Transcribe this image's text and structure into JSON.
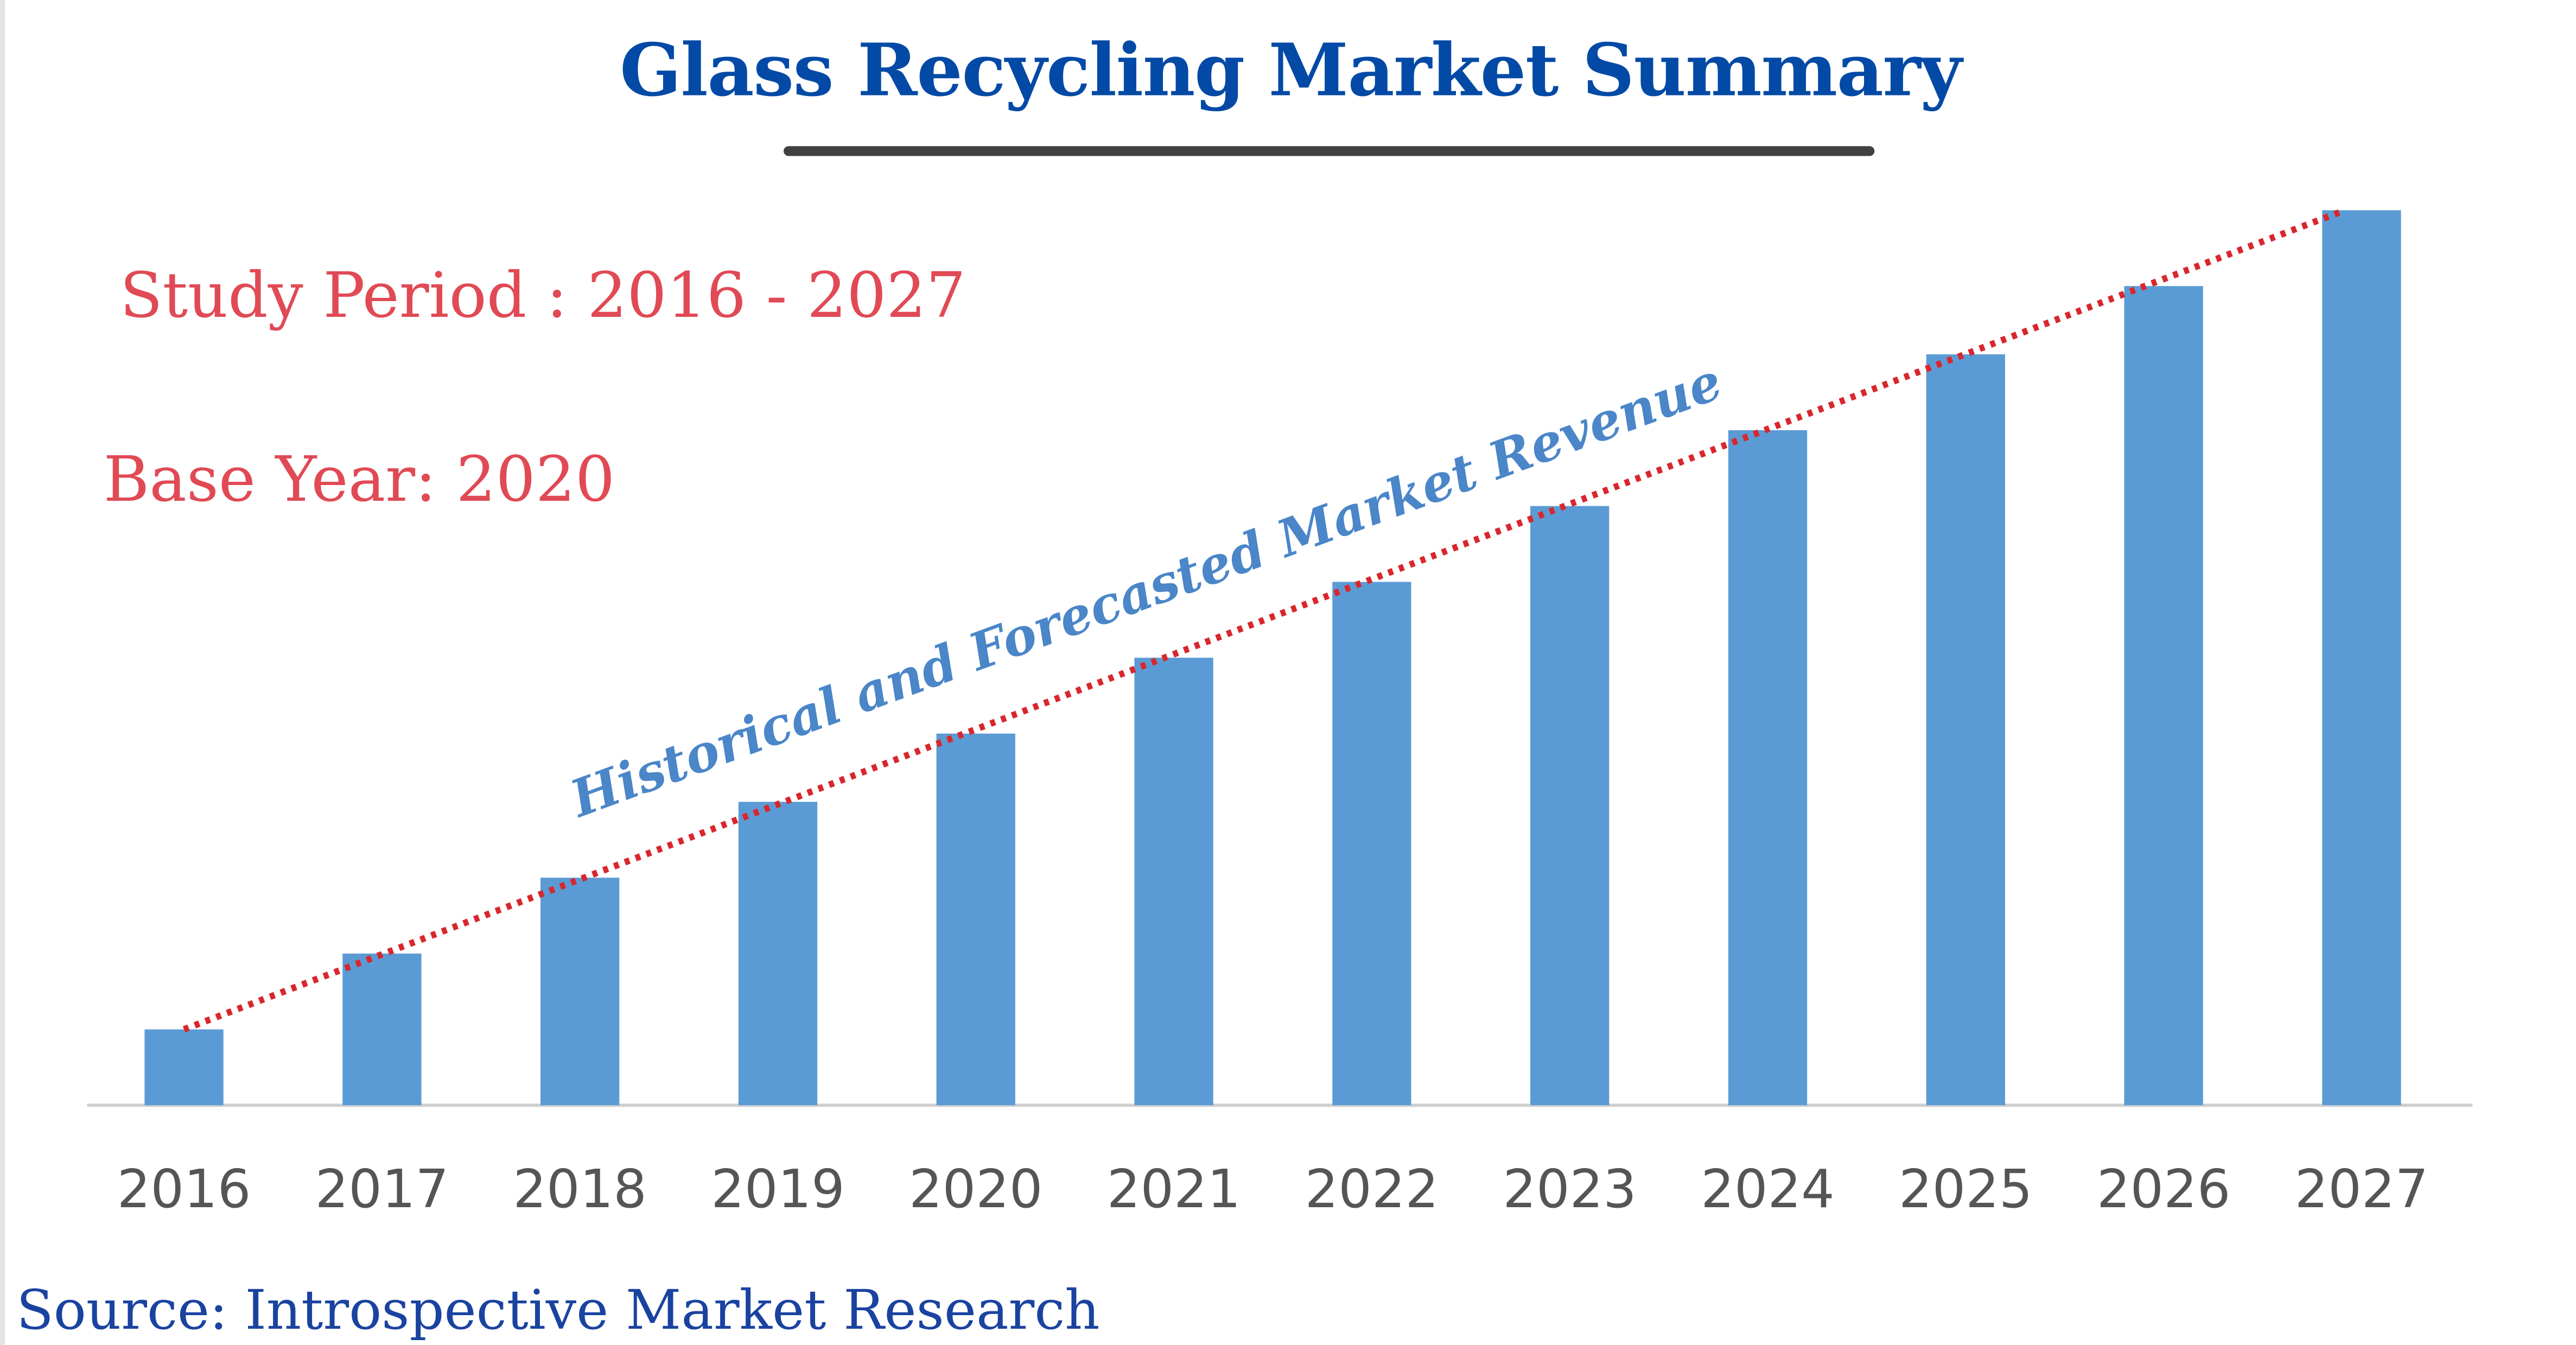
{
  "title": "Glass Recycling Market Summary",
  "study_period": "Study Period : 2016 - 2027",
  "base_year": "Base Year: 2020",
  "source": "Source: Introspective Market Research",
  "colors": {
    "title": "#034aa6",
    "info": "#e04a55",
    "bar": "#5b9bd5",
    "trend": "#d9262c",
    "annotation": "#4a86c8",
    "source": "#1a43a0"
  },
  "chart_data": {
    "type": "bar",
    "title": "Glass Recycling Market Summary",
    "annotation": "Historical and Forecasted Market Revenue",
    "categories": [
      "2016",
      "2017",
      "2018",
      "2019",
      "2020",
      "2021",
      "2022",
      "2023",
      "2024",
      "2025",
      "2026",
      "2027"
    ],
    "values": [
      1.0,
      2.0,
      3.0,
      4.0,
      4.9,
      5.9,
      6.9,
      7.9,
      8.9,
      9.9,
      10.8,
      11.8
    ],
    "trendline": "dotted red linear",
    "y_axis_labels_shown": false,
    "grid": false,
    "ylim": [
      0,
      11.8
    ]
  }
}
